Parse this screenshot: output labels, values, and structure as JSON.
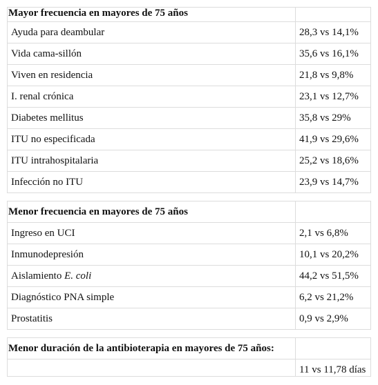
{
  "sections": [
    {
      "title": "Mayor frecuencia en mayores de 75 años",
      "rows": [
        {
          "label": "Ayuda para deambular",
          "value": "28,3 vs 14,1%"
        },
        {
          "label": "Vida cama-sillón",
          "value": "35,6 vs 16,1%"
        },
        {
          "label": "Viven en residencia",
          "value": "21,8 vs 9,8%"
        },
        {
          "label": "I. renal crónica",
          "value": "23,1 vs 12,7%"
        },
        {
          "label": "Diabetes mellitus",
          "value": "35,8 vs 29%"
        },
        {
          "label": "ITU no especificada",
          "value": "41,9 vs 29,6%"
        },
        {
          "label": "ITU intrahospitalaria",
          "value": "25,2 vs 18,6%"
        },
        {
          "label": "Infección no ITU",
          "value": "23,9 vs 14,7%"
        }
      ]
    },
    {
      "title": "Menor frecuencia en mayores de 75 años",
      "rows": [
        {
          "label": "Ingreso en UCI",
          "value": "2,1 vs 6,8%"
        },
        {
          "label": "Inmunodepresión",
          "value": "10,1 vs 20,2%"
        },
        {
          "label": "Aislamiento",
          "label_italic": "E. coli",
          "value": "44,2 vs 51,5%"
        },
        {
          "label": "Diagnóstico PNA simple",
          "value": "6,2 vs 21,2%"
        },
        {
          "label": "Prostatitis",
          "value": "0,9 vs 2,9%"
        }
      ]
    },
    {
      "title": "Menor duración de la antibioterapia en mayores de 75 años:",
      "rows": [
        {
          "value": "11 vs 11,78 días"
        }
      ]
    }
  ]
}
